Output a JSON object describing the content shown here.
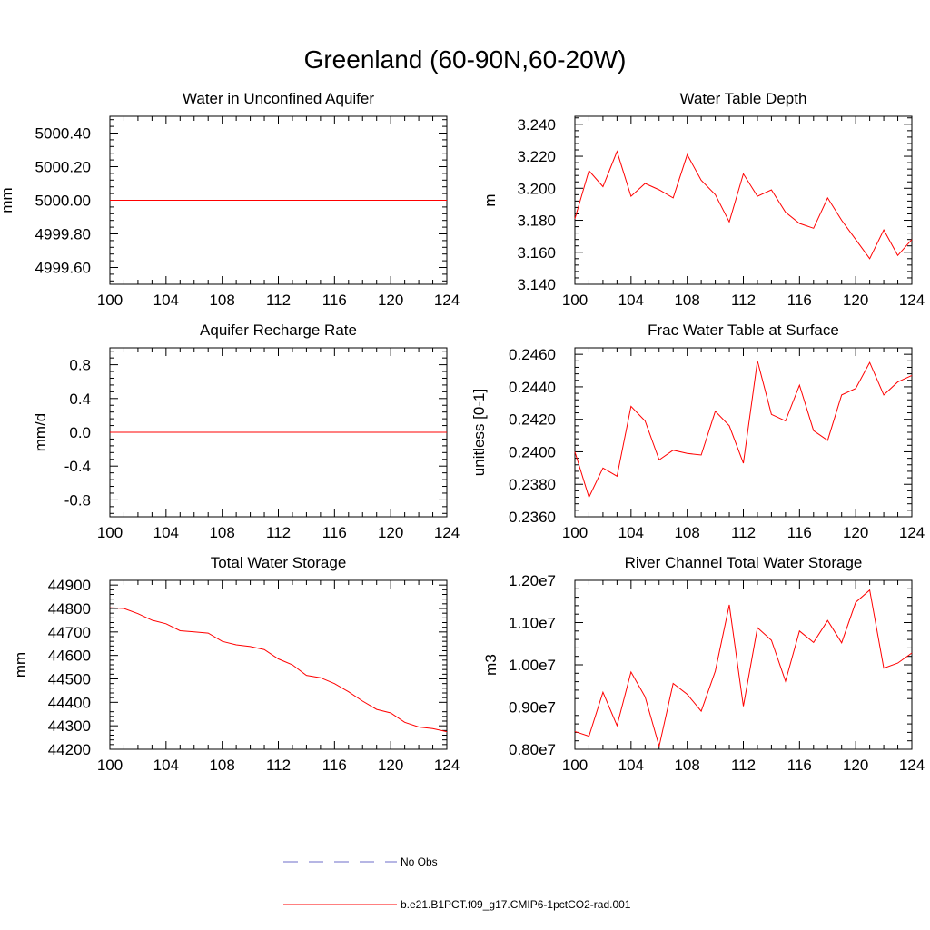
{
  "figure": {
    "title": "Greenland (60-90N,60-20W)"
  },
  "legend": {
    "entries": [
      {
        "label": "No Obs",
        "color": "#6c6cc8",
        "style": "dashed"
      },
      {
        "label": "b.e21.B1PCT.f09_g17.CMIP6-1pctCO2-rad.001",
        "color": "#ff0000",
        "style": "solid"
      }
    ]
  },
  "chart_data": [
    {
      "type": "line",
      "title": "Water in Unconfined Aquifer",
      "xlabel": "",
      "ylabel": "mm",
      "xlim": [
        100,
        124
      ],
      "ylim": [
        4999.5,
        5000.5
      ],
      "xticks": [
        "100",
        "104",
        "108",
        "112",
        "116",
        "120",
        "124"
      ],
      "yticks": [
        "4999.60",
        "4999.80",
        "5000.00",
        "5000.20",
        "5000.40"
      ],
      "series": [
        {
          "color": "#ff0000",
          "x": [
            100,
            101,
            102,
            103,
            104,
            105,
            106,
            107,
            108,
            109,
            110,
            111,
            112,
            113,
            114,
            115,
            116,
            117,
            118,
            119,
            120,
            121,
            122,
            123,
            124
          ],
          "values": [
            5000,
            5000,
            5000,
            5000,
            5000,
            5000,
            5000,
            5000,
            5000,
            5000,
            5000,
            5000,
            5000,
            5000,
            5000,
            5000,
            5000,
            5000,
            5000,
            5000,
            5000,
            5000,
            5000,
            5000,
            5000
          ]
        }
      ]
    },
    {
      "type": "line",
      "title": "Water Table Depth",
      "xlabel": "",
      "ylabel": "m",
      "xlim": [
        100,
        124
      ],
      "ylim": [
        3.14,
        3.245
      ],
      "xticks": [
        "100",
        "104",
        "108",
        "112",
        "116",
        "120",
        "124"
      ],
      "yticks": [
        "3.140",
        "3.160",
        "3.180",
        "3.200",
        "3.220",
        "3.240"
      ],
      "series": [
        {
          "color": "#ff0000",
          "x": [
            100,
            101,
            102,
            103,
            104,
            105,
            106,
            107,
            108,
            109,
            110,
            111,
            112,
            113,
            114,
            115,
            116,
            117,
            118,
            119,
            120,
            121,
            122,
            123,
            124
          ],
          "values": [
            3.181,
            3.211,
            3.201,
            3.223,
            3.195,
            3.203,
            3.199,
            3.194,
            3.221,
            3.205,
            3.196,
            3.179,
            3.209,
            3.195,
            3.199,
            3.185,
            3.178,
            3.175,
            3.194,
            3.18,
            3.168,
            3.156,
            3.174,
            3.158,
            3.168
          ]
        }
      ]
    },
    {
      "type": "line",
      "title": "Aquifer Recharge Rate",
      "xlabel": "",
      "ylabel": "mm/d",
      "xlim": [
        100,
        124
      ],
      "ylim": [
        -1.0,
        1.0
      ],
      "xticks": [
        "100",
        "104",
        "108",
        "112",
        "116",
        "120",
        "124"
      ],
      "yticks": [
        "-0.8",
        "-0.4",
        "0.0",
        "0.4",
        "0.8"
      ],
      "series": [
        {
          "color": "#ff0000",
          "x": [
            100,
            101,
            102,
            103,
            104,
            105,
            106,
            107,
            108,
            109,
            110,
            111,
            112,
            113,
            114,
            115,
            116,
            117,
            118,
            119,
            120,
            121,
            122,
            123,
            124
          ],
          "values": [
            0,
            0,
            0,
            0,
            0,
            0,
            0,
            0,
            0,
            0,
            0,
            0,
            0,
            0,
            0,
            0,
            0,
            0,
            0,
            0,
            0,
            0,
            0,
            0,
            0
          ]
        }
      ]
    },
    {
      "type": "line",
      "title": "Frac Water Table at Surface",
      "xlabel": "",
      "ylabel": "unitless [0-1]",
      "xlim": [
        100,
        124
      ],
      "ylim": [
        0.236,
        0.2464
      ],
      "xticks": [
        "100",
        "104",
        "108",
        "112",
        "116",
        "120",
        "124"
      ],
      "yticks": [
        "0.2360",
        "0.2380",
        "0.2400",
        "0.2420",
        "0.2440",
        "0.2460"
      ],
      "series": [
        {
          "color": "#ff0000",
          "x": [
            100,
            101,
            102,
            103,
            104,
            105,
            106,
            107,
            108,
            109,
            110,
            111,
            112,
            113,
            114,
            115,
            116,
            117,
            118,
            119,
            120,
            121,
            122,
            123,
            124
          ],
          "values": [
            0.24,
            0.2372,
            0.239,
            0.2385,
            0.2428,
            0.2419,
            0.2395,
            0.2401,
            0.2399,
            0.2398,
            0.2425,
            0.2416,
            0.2393,
            0.2456,
            0.2423,
            0.2419,
            0.2441,
            0.2413,
            0.2407,
            0.2435,
            0.2439,
            0.2455,
            0.2435,
            0.2443,
            0.2447
          ]
        }
      ]
    },
    {
      "type": "line",
      "title": "Total Water Storage",
      "xlabel": "",
      "ylabel": "mm",
      "xlim": [
        100,
        124
      ],
      "ylim": [
        44200,
        44920
      ],
      "xticks": [
        "100",
        "104",
        "108",
        "112",
        "116",
        "120",
        "124"
      ],
      "yticks": [
        "44200",
        "44300",
        "44400",
        "44500",
        "44600",
        "44700",
        "44800",
        "44900"
      ],
      "series": [
        {
          "color": "#ff0000",
          "x": [
            100,
            101,
            102,
            103,
            104,
            105,
            106,
            107,
            108,
            109,
            110,
            111,
            112,
            113,
            114,
            115,
            116,
            117,
            118,
            119,
            120,
            121,
            122,
            123,
            124
          ],
          "values": [
            44803,
            44800,
            44778,
            44750,
            44735,
            44705,
            44700,
            44695,
            44660,
            44645,
            44638,
            44625,
            44585,
            44560,
            44515,
            44505,
            44480,
            44445,
            44405,
            44370,
            44355,
            44315,
            44295,
            44288,
            44275
          ]
        }
      ]
    },
    {
      "type": "line",
      "title": "River Channel Total Water Storage",
      "xlabel": "",
      "ylabel": "m3",
      "xlim": [
        100,
        124
      ],
      "ylim": [
        8000000,
        12000000
      ],
      "xticks": [
        "100",
        "104",
        "108",
        "112",
        "116",
        "120",
        "124"
      ],
      "yticks": [
        "0.80e7",
        "0.90e7",
        "1.00e7",
        "1.10e7",
        "1.20e7"
      ],
      "series": [
        {
          "color": "#ff0000",
          "x": [
            100,
            101,
            102,
            103,
            104,
            105,
            106,
            107,
            108,
            109,
            110,
            111,
            112,
            113,
            114,
            115,
            116,
            117,
            118,
            119,
            120,
            121,
            122,
            123,
            124
          ],
          "values": [
            8420000,
            8310000,
            9350000,
            8560000,
            9830000,
            9240000,
            8070000,
            9560000,
            9300000,
            8900000,
            9850000,
            11420000,
            9020000,
            10880000,
            10580000,
            9610000,
            10800000,
            10530000,
            11050000,
            10520000,
            11480000,
            11770000,
            9920000,
            10040000,
            10280000
          ]
        }
      ]
    }
  ]
}
